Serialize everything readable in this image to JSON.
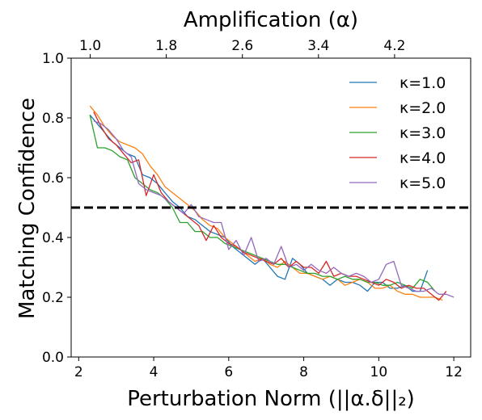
{
  "chart_data": {
    "type": "line",
    "xlabel": "Perturbation Norm (||α.δ||₂)",
    "ylabel": "Matching Confidence",
    "top_xlabel": "Amplification (α)",
    "xlim": [
      1.8,
      12.45
    ],
    "ylim": [
      0.0,
      1.0
    ],
    "x_ticks": [
      2,
      4,
      6,
      8,
      10,
      12
    ],
    "y_ticks": [
      "0.0",
      "0.2",
      "0.4",
      "0.6",
      "0.8",
      "1.0"
    ],
    "top_ticks": [
      {
        "value": 1.0,
        "label": "1.0"
      },
      {
        "value": 1.8,
        "label": "1.8"
      },
      {
        "value": 2.6,
        "label": "2.6"
      },
      {
        "value": 3.4,
        "label": "3.4"
      },
      {
        "value": 4.2,
        "label": "4.2"
      }
    ],
    "top_axis_range": [
      0.8,
      5.0
    ],
    "threshold": 0.5,
    "legend_position": "top-right",
    "series": [
      {
        "name": "κ=1.0",
        "color": "#1f77b4",
        "points": [
          [
            2.3,
            0.81
          ],
          [
            2.5,
            0.78
          ],
          [
            2.7,
            0.75
          ],
          [
            2.9,
            0.72
          ],
          [
            3.1,
            0.7
          ],
          [
            3.3,
            0.68
          ],
          [
            3.5,
            0.67
          ],
          [
            3.7,
            0.61
          ],
          [
            3.9,
            0.6
          ],
          [
            4.1,
            0.58
          ],
          [
            4.3,
            0.55
          ],
          [
            4.5,
            0.52
          ],
          [
            4.7,
            0.5
          ],
          [
            4.9,
            0.47
          ],
          [
            5.1,
            0.46
          ],
          [
            5.3,
            0.44
          ],
          [
            5.5,
            0.42
          ],
          [
            5.7,
            0.41
          ],
          [
            5.9,
            0.4
          ],
          [
            6.1,
            0.37
          ],
          [
            6.3,
            0.35
          ],
          [
            6.5,
            0.33
          ],
          [
            6.7,
            0.31
          ],
          [
            6.9,
            0.33
          ],
          [
            7.1,
            0.3
          ],
          [
            7.3,
            0.27
          ],
          [
            7.5,
            0.26
          ],
          [
            7.7,
            0.33
          ],
          [
            7.9,
            0.31
          ],
          [
            8.1,
            0.28
          ],
          [
            8.3,
            0.27
          ],
          [
            8.5,
            0.26
          ],
          [
            8.7,
            0.24
          ],
          [
            8.9,
            0.26
          ],
          [
            9.1,
            0.25
          ],
          [
            9.3,
            0.25
          ],
          [
            9.5,
            0.24
          ],
          [
            9.7,
            0.22
          ],
          [
            9.9,
            0.25
          ],
          [
            10.1,
            0.25
          ],
          [
            10.3,
            0.23
          ],
          [
            10.5,
            0.23
          ],
          [
            10.7,
            0.24
          ],
          [
            10.9,
            0.22
          ],
          [
            11.1,
            0.22
          ],
          [
            11.3,
            0.29
          ]
        ]
      },
      {
        "name": "κ=2.0",
        "color": "#ff7f0e",
        "points": [
          [
            2.3,
            0.84
          ],
          [
            2.5,
            0.81
          ],
          [
            2.7,
            0.77
          ],
          [
            2.9,
            0.74
          ],
          [
            3.1,
            0.72
          ],
          [
            3.3,
            0.71
          ],
          [
            3.5,
            0.7
          ],
          [
            3.7,
            0.68
          ],
          [
            3.9,
            0.64
          ],
          [
            4.1,
            0.61
          ],
          [
            4.3,
            0.57
          ],
          [
            4.5,
            0.55
          ],
          [
            4.7,
            0.53
          ],
          [
            4.9,
            0.51
          ],
          [
            5.1,
            0.49
          ],
          [
            5.3,
            0.46
          ],
          [
            5.5,
            0.44
          ],
          [
            5.7,
            0.43
          ],
          [
            5.9,
            0.4
          ],
          [
            6.1,
            0.38
          ],
          [
            6.3,
            0.36
          ],
          [
            6.5,
            0.34
          ],
          [
            6.7,
            0.32
          ],
          [
            6.9,
            0.33
          ],
          [
            7.1,
            0.31
          ],
          [
            7.3,
            0.3
          ],
          [
            7.5,
            0.32
          ],
          [
            7.7,
            0.3
          ],
          [
            7.9,
            0.28
          ],
          [
            8.1,
            0.28
          ],
          [
            8.3,
            0.27
          ],
          [
            8.5,
            0.26
          ],
          [
            8.7,
            0.27
          ],
          [
            8.9,
            0.26
          ],
          [
            9.1,
            0.24
          ],
          [
            9.3,
            0.25
          ],
          [
            9.5,
            0.26
          ],
          [
            9.7,
            0.25
          ],
          [
            9.9,
            0.23
          ],
          [
            10.1,
            0.23
          ],
          [
            10.3,
            0.24
          ],
          [
            10.5,
            0.22
          ],
          [
            10.7,
            0.21
          ],
          [
            10.9,
            0.21
          ],
          [
            11.1,
            0.2
          ],
          [
            11.3,
            0.2
          ],
          [
            11.5,
            0.2
          ],
          [
            11.7,
            0.19
          ]
        ]
      },
      {
        "name": "κ=3.0",
        "color": "#2ca02c",
        "points": [
          [
            2.3,
            0.81
          ],
          [
            2.5,
            0.7
          ],
          [
            2.7,
            0.7
          ],
          [
            2.9,
            0.69
          ],
          [
            3.1,
            0.67
          ],
          [
            3.3,
            0.66
          ],
          [
            3.5,
            0.6
          ],
          [
            3.7,
            0.58
          ],
          [
            3.9,
            0.56
          ],
          [
            4.1,
            0.55
          ],
          [
            4.3,
            0.53
          ],
          [
            4.5,
            0.5
          ],
          [
            4.7,
            0.45
          ],
          [
            4.9,
            0.45
          ],
          [
            5.1,
            0.42
          ],
          [
            5.3,
            0.42
          ],
          [
            5.5,
            0.4
          ],
          [
            5.7,
            0.4
          ],
          [
            5.9,
            0.38
          ],
          [
            6.1,
            0.37
          ],
          [
            6.3,
            0.36
          ],
          [
            6.5,
            0.35
          ],
          [
            6.7,
            0.34
          ],
          [
            6.9,
            0.33
          ],
          [
            7.1,
            0.32
          ],
          [
            7.3,
            0.31
          ],
          [
            7.5,
            0.31
          ],
          [
            7.7,
            0.3
          ],
          [
            7.9,
            0.29
          ],
          [
            8.1,
            0.28
          ],
          [
            8.3,
            0.28
          ],
          [
            8.5,
            0.27
          ],
          [
            8.7,
            0.27
          ],
          [
            8.9,
            0.26
          ],
          [
            9.1,
            0.27
          ],
          [
            9.3,
            0.26
          ],
          [
            9.5,
            0.26
          ],
          [
            9.7,
            0.25
          ],
          [
            9.9,
            0.25
          ],
          [
            10.1,
            0.24
          ],
          [
            10.3,
            0.24
          ],
          [
            10.5,
            0.25
          ],
          [
            10.7,
            0.24
          ],
          [
            10.9,
            0.23
          ],
          [
            11.1,
            0.26
          ],
          [
            11.3,
            0.25
          ],
          [
            11.5,
            0.22
          ]
        ]
      },
      {
        "name": "κ=4.0",
        "color": "#d62728",
        "points": [
          [
            2.4,
            0.82
          ],
          [
            2.6,
            0.77
          ],
          [
            2.8,
            0.73
          ],
          [
            3.0,
            0.71
          ],
          [
            3.2,
            0.68
          ],
          [
            3.4,
            0.65
          ],
          [
            3.6,
            0.66
          ],
          [
            3.8,
            0.54
          ],
          [
            4.0,
            0.61
          ],
          [
            4.2,
            0.55
          ],
          [
            4.4,
            0.52
          ],
          [
            4.6,
            0.5
          ],
          [
            4.8,
            0.48
          ],
          [
            5.0,
            0.46
          ],
          [
            5.2,
            0.44
          ],
          [
            5.4,
            0.39
          ],
          [
            5.6,
            0.44
          ],
          [
            5.8,
            0.4
          ],
          [
            6.0,
            0.38
          ],
          [
            6.2,
            0.37
          ],
          [
            6.4,
            0.35
          ],
          [
            6.6,
            0.34
          ],
          [
            6.8,
            0.33
          ],
          [
            7.0,
            0.32
          ],
          [
            7.2,
            0.31
          ],
          [
            7.4,
            0.33
          ],
          [
            7.6,
            0.3
          ],
          [
            7.8,
            0.32
          ],
          [
            8.0,
            0.3
          ],
          [
            8.2,
            0.3
          ],
          [
            8.4,
            0.28
          ],
          [
            8.6,
            0.32
          ],
          [
            8.8,
            0.27
          ],
          [
            9.0,
            0.28
          ],
          [
            9.2,
            0.27
          ],
          [
            9.4,
            0.27
          ],
          [
            9.6,
            0.26
          ],
          [
            9.8,
            0.25
          ],
          [
            10.0,
            0.24
          ],
          [
            10.2,
            0.26
          ],
          [
            10.4,
            0.25
          ],
          [
            10.6,
            0.23
          ],
          [
            10.8,
            0.24
          ],
          [
            11.0,
            0.23
          ],
          [
            11.2,
            0.23
          ],
          [
            11.4,
            0.21
          ],
          [
            11.6,
            0.19
          ],
          [
            11.8,
            0.22
          ]
        ]
      },
      {
        "name": "κ=5.0",
        "color": "#9467bd",
        "points": [
          [
            2.4,
            0.79
          ],
          [
            2.6,
            0.78
          ],
          [
            2.8,
            0.76
          ],
          [
            3.0,
            0.73
          ],
          [
            3.2,
            0.69
          ],
          [
            3.4,
            0.67
          ],
          [
            3.6,
            0.58
          ],
          [
            3.8,
            0.56
          ],
          [
            4.0,
            0.55
          ],
          [
            4.2,
            0.54
          ],
          [
            4.4,
            0.52
          ],
          [
            4.6,
            0.5
          ],
          [
            4.8,
            0.48
          ],
          [
            5.0,
            0.51
          ],
          [
            5.2,
            0.47
          ],
          [
            5.4,
            0.46
          ],
          [
            5.6,
            0.45
          ],
          [
            5.8,
            0.45
          ],
          [
            6.0,
            0.36
          ],
          [
            6.2,
            0.39
          ],
          [
            6.4,
            0.34
          ],
          [
            6.6,
            0.4
          ],
          [
            6.8,
            0.32
          ],
          [
            7.0,
            0.33
          ],
          [
            7.2,
            0.31
          ],
          [
            7.4,
            0.37
          ],
          [
            7.6,
            0.3
          ],
          [
            7.8,
            0.31
          ],
          [
            8.0,
            0.29
          ],
          [
            8.2,
            0.31
          ],
          [
            8.4,
            0.29
          ],
          [
            8.6,
            0.28
          ],
          [
            8.8,
            0.3
          ],
          [
            9.0,
            0.28
          ],
          [
            9.2,
            0.27
          ],
          [
            9.4,
            0.28
          ],
          [
            9.6,
            0.27
          ],
          [
            9.8,
            0.25
          ],
          [
            10.0,
            0.26
          ],
          [
            10.2,
            0.31
          ],
          [
            10.4,
            0.32
          ],
          [
            10.6,
            0.24
          ],
          [
            10.8,
            0.23
          ],
          [
            11.0,
            0.22
          ],
          [
            11.2,
            0.22
          ],
          [
            11.4,
            0.23
          ],
          [
            11.6,
            0.21
          ],
          [
            11.8,
            0.21
          ],
          [
            12.0,
            0.2
          ]
        ]
      }
    ]
  }
}
